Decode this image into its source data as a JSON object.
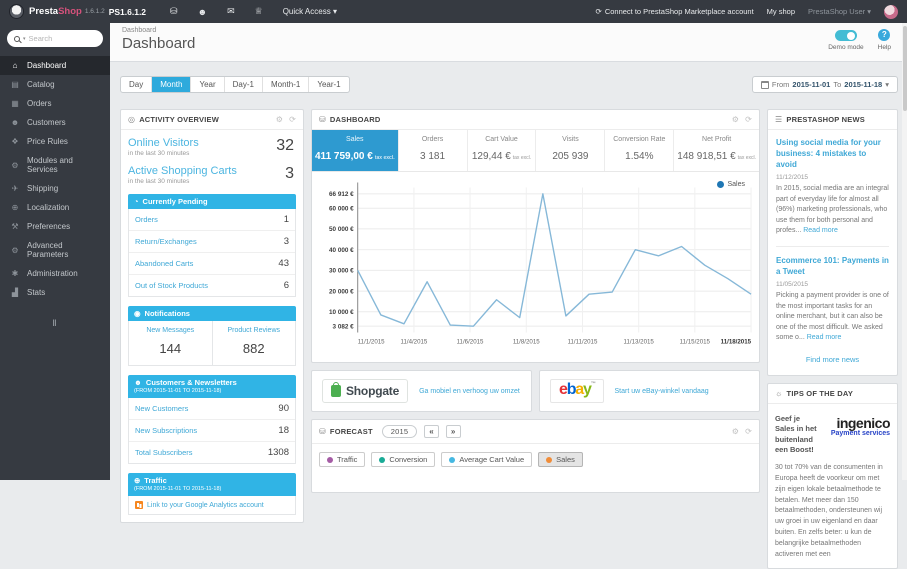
{
  "topbar": {
    "brand_presta": "Presta",
    "brand_shop": "Shop",
    "version": "1.6.1.2",
    "shop_name": "PS1.6.1.2",
    "quick_access": "Quick Access ▾",
    "connect": "Connect to PrestaShop Marketplace account",
    "my_shop": "My shop",
    "user": "PrestaShop User ▾"
  },
  "sidebar": {
    "search_placeholder": "Search",
    "items": [
      {
        "label": "Dashboard",
        "active": true
      },
      {
        "label": "Catalog"
      },
      {
        "label": "Orders"
      },
      {
        "label": "Customers"
      },
      {
        "label": "Price Rules"
      },
      {
        "label": "Modules and Services"
      },
      {
        "label": "Shipping"
      },
      {
        "label": "Localization"
      },
      {
        "label": "Preferences"
      },
      {
        "label": "Advanced Parameters"
      },
      {
        "label": "Administration"
      },
      {
        "label": "Stats"
      }
    ]
  },
  "header": {
    "breadcrumb": "Dashboard",
    "title": "Dashboard",
    "demo_mode": "Demo mode",
    "help": "Help"
  },
  "toolbar": {
    "tabs": [
      "Day",
      "Month",
      "Year",
      "Day-1",
      "Month-1",
      "Year-1"
    ],
    "active_tab": "Month",
    "from_label": "From",
    "date_from": "2015-11-01",
    "to_label": "To",
    "date_to": "2015-11-18",
    "caret": "▾"
  },
  "activity": {
    "title": "ACTIVITY OVERVIEW",
    "online_visitors": {
      "label": "Online Visitors",
      "sub": "in the last 30 minutes",
      "value": "32"
    },
    "active_carts": {
      "label": "Active Shopping Carts",
      "sub": "in the last 30 minutes",
      "value": "3"
    },
    "pending": {
      "title": "Currently Pending",
      "rows": [
        {
          "label": "Orders",
          "value": "1"
        },
        {
          "label": "Return/Exchanges",
          "value": "3"
        },
        {
          "label": "Abandoned Carts",
          "value": "43"
        },
        {
          "label": "Out of Stock Products",
          "value": "6"
        }
      ]
    },
    "notifications": {
      "title": "Notifications",
      "cols": [
        {
          "label": "New Messages",
          "value": "144"
        },
        {
          "label": "Product Reviews",
          "value": "882"
        }
      ]
    },
    "customers": {
      "title": "Customers & Newsletters",
      "subtitle": "(FROM 2015-11-01 TO 2015-11-18)",
      "rows": [
        {
          "label": "New Customers",
          "value": "90"
        },
        {
          "label": "New Subscriptions",
          "value": "18"
        },
        {
          "label": "Total Subscribers",
          "value": "1308"
        }
      ]
    },
    "traffic": {
      "title": "Traffic",
      "subtitle": "(FROM 2015-11-01 TO 2015-11-18)",
      "link": "Link to your Google Analytics account"
    }
  },
  "dashboard_panel": {
    "title": "DASHBOARD",
    "kpis": [
      {
        "label": "Sales",
        "value": "411 759,00 €",
        "note": "tax excl.",
        "active": true
      },
      {
        "label": "Orders",
        "value": "3 181"
      },
      {
        "label": "Cart Value",
        "value": "129,44 €",
        "note": "tax excl."
      },
      {
        "label": "Visits",
        "value": "205 939"
      },
      {
        "label": "Conversion Rate",
        "value": "1.54%"
      },
      {
        "label": "Net Profit",
        "value": "148 918,51 €",
        "note": "tax excl."
      }
    ]
  },
  "chart_data": {
    "type": "line",
    "legend": [
      "Sales"
    ],
    "legend_position": "top-right",
    "x": [
      "11/1/2015",
      "11/2/2015",
      "11/3/2015",
      "11/4/2015",
      "11/5/2015",
      "11/6/2015",
      "11/7/2015",
      "11/8/2015",
      "11/9/2015",
      "11/10/2015",
      "11/11/2015",
      "11/12/2015",
      "11/13/2015",
      "11/14/2015",
      "11/15/2015",
      "11/16/2015",
      "11/17/2015",
      "11/18/2015"
    ],
    "series": [
      {
        "name": "Sales",
        "values": [
          30000,
          8500,
          4200,
          24500,
          3600,
          3082,
          15800,
          7200,
          66912,
          8000,
          18500,
          19500,
          40000,
          37000,
          41500,
          32500,
          26000,
          18500
        ]
      }
    ],
    "y_ticks": [
      {
        "label": "3 082 €",
        "value": 3082
      },
      {
        "label": "10 000 €",
        "value": 10000
      },
      {
        "label": "20 000 €",
        "value": 20000
      },
      {
        "label": "30 000 €",
        "value": 30000
      },
      {
        "label": "40 000 €",
        "value": 40000
      },
      {
        "label": "50 000 €",
        "value": 50000
      },
      {
        "label": "60 000 €",
        "value": 60000
      },
      {
        "label": "66 912 €",
        "value": 66912
      }
    ],
    "x_tick_labels": [
      "11/1/2015",
      "11/4/2015",
      "11/6/2015",
      "11/8/2015",
      "11/11/2015",
      "11/13/2015",
      "11/15/2015",
      "11/18/2015"
    ],
    "ylim": [
      0,
      70000
    ],
    "grid": true,
    "line_color": "#86b8d8",
    "legend_dot_color": "#1f77b4"
  },
  "banners": {
    "shopgate": {
      "logo": "Shopgate",
      "link": "Ga mobiel en verhoog uw omzet"
    },
    "ebay": {
      "logo": "ebay",
      "tm": "™",
      "link": "Start uw eBay-winkel vandaag"
    }
  },
  "forecast": {
    "title": "FORECAST",
    "year": "2015",
    "back": "«",
    "forward": "»",
    "legend": [
      {
        "label": "Traffic",
        "color": "#a55ca5"
      },
      {
        "label": "Conversion",
        "color": "#19ab96"
      },
      {
        "label": "Average Cart Value",
        "color": "#45b8e2"
      },
      {
        "label": "Sales",
        "color": "#f08c38",
        "active": true
      }
    ]
  },
  "news": {
    "title": "PRESTASHOP NEWS",
    "articles": [
      {
        "title": "Using social media for your business: 4 mistakes to avoid",
        "date": "11/12/2015",
        "excerpt": "In 2015, social media are an integral part of everyday life for almost all (96%) marketing professionals, who use them for both personal and profes... ",
        "read_more": "Read more"
      },
      {
        "title": "Ecommerce 101: Payments in a Tweet",
        "date": "11/05/2015",
        "excerpt": "Picking a payment provider is one of the most important tasks for an online merchant, but it can also be one of the most difficult. We asked some o... ",
        "read_more": "Read more"
      }
    ],
    "more": "Find more news"
  },
  "tips": {
    "title": "TIPS OF THE DAY",
    "headline": "Geef je Sales in het buitenland een Boost!",
    "logo_main": "ingenico",
    "logo_sub": "Payment services",
    "body": "30 tot 70% van de consumenten in Europa heeft de voorkeur om met zijn eigen lokale betaalmethode te betalen. Met meer dan 150 betaalmethoden, ondersteunen wij uw groei in uw eigenland en daar buiten. En zelfs beter: u kun de belangrijke betaalmethoden activeren met een"
  },
  "colors": {
    "topbar_bg": "#363a41",
    "accent_blue": "#2eaadc",
    "section_header_blue": "#30b4e5",
    "kpi_active_blue": "#2e9ad0",
    "link_blue": "#3fa8d6",
    "brand_pink": "#d6527c",
    "toggle_teal": "#43bcd4",
    "ebay_letters": [
      "#e53238",
      "#0064d2",
      "#f5af02",
      "#86b817"
    ]
  },
  "icons": {
    "cart": "⛁",
    "user": "☻",
    "mail": "✉",
    "trophy": "♕",
    "refresh": "⟳",
    "gear": "⚙",
    "activity": "◎",
    "clock": "◔",
    "bell": "◉",
    "person": "☻",
    "globe": "⊕",
    "news": "☰",
    "bulb": "☼",
    "home": "⌂",
    "catalog": "▤",
    "orders": "▦",
    "customers": "☻",
    "price_rules": "❖",
    "modules": "⚙",
    "shipping": "✈",
    "localization": "⊕",
    "preferences": "⚒",
    "advanced": "⚙",
    "administration": "✱",
    "stats": "▟",
    "collapse": "‖",
    "help": "?"
  }
}
